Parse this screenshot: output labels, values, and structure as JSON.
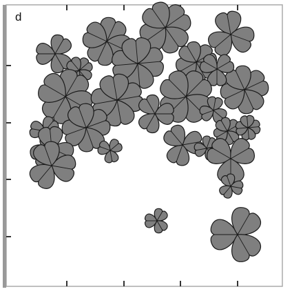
{
  "panel_label": "d"
}
